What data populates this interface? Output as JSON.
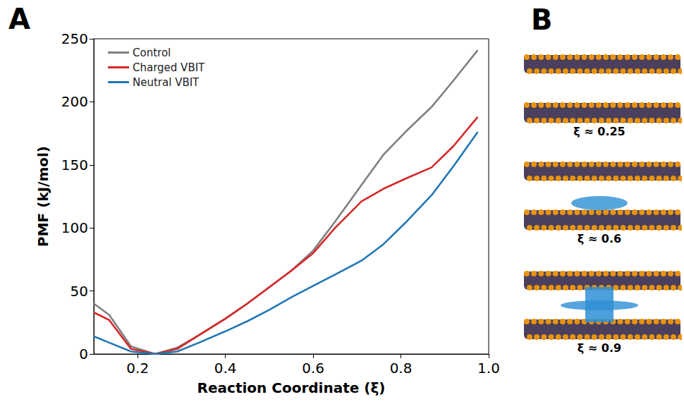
{
  "chart_data": {
    "type": "line",
    "panel_label": "A",
    "xlabel": "Reaction Coordinate (ξ)",
    "ylabel": "PMF (kJ/mol)",
    "x": [
      0.1,
      0.135,
      0.185,
      0.24,
      0.29,
      0.34,
      0.4,
      0.45,
      0.5,
      0.55,
      0.6,
      0.65,
      0.71,
      0.76,
      0.81,
      0.87,
      0.92,
      0.975
    ],
    "series": [
      {
        "name": "Control",
        "color": "#808080",
        "values": [
          40,
          31,
          6,
          0,
          5,
          15,
          28,
          40,
          53,
          66,
          82,
          105,
          134,
          158,
          176,
          196,
          217,
          241
        ]
      },
      {
        "name": "Charged VBIT",
        "color": "#d62728",
        "values": [
          33,
          27,
          4,
          0,
          4,
          15,
          28,
          40,
          53,
          66,
          80,
          100,
          121,
          131,
          139,
          148,
          165,
          188
        ]
      },
      {
        "name": "Neutral VBIT",
        "color": "#1f77b4",
        "values": [
          14,
          9,
          2,
          0,
          2,
          9,
          18,
          26,
          35,
          45,
          54,
          63,
          74,
          87,
          104,
          126,
          149,
          176
        ]
      }
    ],
    "xlim": [
      0.1,
      1.0
    ],
    "xticks": [
      0.2,
      0.4,
      0.6,
      0.8,
      {
        "value": 1,
        "label": "1.0"
      }
    ],
    "ylim": [
      0,
      250
    ],
    "yticks": [
      0,
      50,
      100,
      150,
      200,
      250
    ],
    "grid": false,
    "legend": "upper left"
  },
  "panel_b": {
    "panel_label": "B",
    "snapshots": [
      {
        "label": "ξ ≈ 0.25"
      },
      {
        "label": "ξ ≈ 0.6"
      },
      {
        "label": "ξ ≈ 0.9"
      }
    ]
  }
}
